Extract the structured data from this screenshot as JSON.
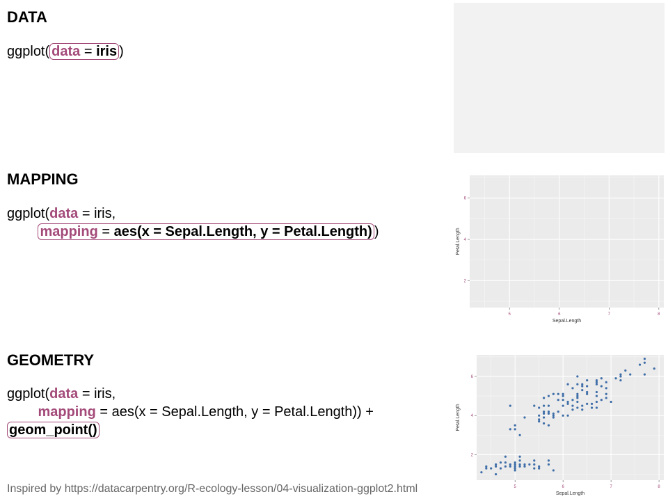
{
  "sections": {
    "data": {
      "heading": "DATA",
      "code": {
        "fn": "ggplot(",
        "data_kw": "data",
        "eq1": " = ",
        "iris": "iris",
        "close": ")"
      }
    },
    "mapping": {
      "heading": "MAPPING",
      "code": {
        "line1_fn": "ggplot(",
        "data_kw": "data",
        "line1_rest": " = iris,",
        "indent": "        ",
        "mapping_kw": "mapping",
        "eq": " = ",
        "aes": "aes(x = Sepal.Length, y = Petal.Length)",
        "close": ")"
      }
    },
    "geometry": {
      "heading": "GEOMETRY",
      "code": {
        "line1_fn": "ggplot(",
        "data_kw": "data",
        "line1_rest": " = iris,",
        "indent": "        ",
        "mapping_kw": "mapping",
        "line2_rest": " = aes(x = Sepal.Length, y = Petal.Length)) +",
        "geom": "geom_point()"
      }
    }
  },
  "footer": "Inspired by https://datacarpentry.org/R-ecology-lesson/04-visualization-ggplot2.html",
  "colors": {
    "keyword": "#a34a79",
    "panel": "#ebebeb",
    "point": "#3f6ea8"
  },
  "chart_data": [
    {
      "type": "scatter",
      "panel": "blank",
      "note": "empty gray canvas"
    },
    {
      "type": "scatter",
      "panel": "axes-only",
      "xlabel": "Sepal.Length",
      "ylabel": "Petal.Length",
      "xticks": [
        5,
        6,
        7,
        8
      ],
      "yticks": [
        2,
        4,
        6
      ],
      "xlim": [
        4.2,
        8.1
      ],
      "ylim": [
        0.7,
        7.1
      ],
      "grid": true,
      "points": []
    },
    {
      "type": "scatter",
      "panel": "points",
      "xlabel": "Sepal.Length",
      "ylabel": "Petal.Length",
      "xticks": [
        5,
        6,
        7,
        8
      ],
      "yticks": [
        2,
        4,
        6
      ],
      "xlim": [
        4.2,
        8.1
      ],
      "ylim": [
        0.7,
        7.1
      ],
      "grid": true,
      "points": [
        [
          4.3,
          1.1
        ],
        [
          4.4,
          1.3
        ],
        [
          4.4,
          1.4
        ],
        [
          4.5,
          1.3
        ],
        [
          4.6,
          1.0
        ],
        [
          4.6,
          1.4
        ],
        [
          4.6,
          1.5
        ],
        [
          4.7,
          1.3
        ],
        [
          4.7,
          1.6
        ],
        [
          4.8,
          1.4
        ],
        [
          4.8,
          1.6
        ],
        [
          4.8,
          1.9
        ],
        [
          4.9,
          1.4
        ],
        [
          4.9,
          1.5
        ],
        [
          4.9,
          3.3
        ],
        [
          4.9,
          4.5
        ],
        [
          5.0,
          1.2
        ],
        [
          5.0,
          1.3
        ],
        [
          5.0,
          1.4
        ],
        [
          5.0,
          1.5
        ],
        [
          5.0,
          1.6
        ],
        [
          5.0,
          3.3
        ],
        [
          5.0,
          3.5
        ],
        [
          5.1,
          1.4
        ],
        [
          5.1,
          1.5
        ],
        [
          5.1,
          1.7
        ],
        [
          5.1,
          1.9
        ],
        [
          5.1,
          3.0
        ],
        [
          5.2,
          1.4
        ],
        [
          5.2,
          1.5
        ],
        [
          5.2,
          3.9
        ],
        [
          5.3,
          1.5
        ],
        [
          5.4,
          1.3
        ],
        [
          5.4,
          1.5
        ],
        [
          5.4,
          1.7
        ],
        [
          5.4,
          4.5
        ],
        [
          5.5,
          1.3
        ],
        [
          5.5,
          1.4
        ],
        [
          5.5,
          3.7
        ],
        [
          5.5,
          3.8
        ],
        [
          5.5,
          4.0
        ],
        [
          5.5,
          4.4
        ],
        [
          5.6,
          3.6
        ],
        [
          5.6,
          3.9
        ],
        [
          5.6,
          4.1
        ],
        [
          5.6,
          4.2
        ],
        [
          5.6,
          4.5
        ],
        [
          5.6,
          4.9
        ],
        [
          5.7,
          1.5
        ],
        [
          5.7,
          1.7
        ],
        [
          5.7,
          3.5
        ],
        [
          5.7,
          4.1
        ],
        [
          5.7,
          4.2
        ],
        [
          5.7,
          4.5
        ],
        [
          5.7,
          5.0
        ],
        [
          5.8,
          1.2
        ],
        [
          5.8,
          3.9
        ],
        [
          5.8,
          4.0
        ],
        [
          5.8,
          4.1
        ],
        [
          5.8,
          5.1
        ],
        [
          5.9,
          4.2
        ],
        [
          5.9,
          4.8
        ],
        [
          5.9,
          5.1
        ],
        [
          6.0,
          4.0
        ],
        [
          6.0,
          4.5
        ],
        [
          6.0,
          4.8
        ],
        [
          6.0,
          5.0
        ],
        [
          6.0,
          5.1
        ],
        [
          6.1,
          4.0
        ],
        [
          6.1,
          4.6
        ],
        [
          6.1,
          4.7
        ],
        [
          6.1,
          5.6
        ],
        [
          6.2,
          4.3
        ],
        [
          6.2,
          4.5
        ],
        [
          6.2,
          4.8
        ],
        [
          6.2,
          5.4
        ],
        [
          6.3,
          4.4
        ],
        [
          6.3,
          4.7
        ],
        [
          6.3,
          4.9
        ],
        [
          6.3,
          5.0
        ],
        [
          6.3,
          5.1
        ],
        [
          6.3,
          5.6
        ],
        [
          6.3,
          6.0
        ],
        [
          6.4,
          4.3
        ],
        [
          6.4,
          4.5
        ],
        [
          6.4,
          5.3
        ],
        [
          6.4,
          5.5
        ],
        [
          6.4,
          5.6
        ],
        [
          6.5,
          4.6
        ],
        [
          6.5,
          5.1
        ],
        [
          6.5,
          5.2
        ],
        [
          6.5,
          5.5
        ],
        [
          6.5,
          5.8
        ],
        [
          6.6,
          4.4
        ],
        [
          6.6,
          4.6
        ],
        [
          6.7,
          4.4
        ],
        [
          6.7,
          4.7
        ],
        [
          6.7,
          5.0
        ],
        [
          6.7,
          5.2
        ],
        [
          6.7,
          5.6
        ],
        [
          6.7,
          5.7
        ],
        [
          6.7,
          5.8
        ],
        [
          6.8,
          4.8
        ],
        [
          6.8,
          5.5
        ],
        [
          6.8,
          5.9
        ],
        [
          6.9,
          4.9
        ],
        [
          6.9,
          5.1
        ],
        [
          6.9,
          5.4
        ],
        [
          6.9,
          5.7
        ],
        [
          7.0,
          4.7
        ],
        [
          7.1,
          5.9
        ],
        [
          7.2,
          5.8
        ],
        [
          7.2,
          6.0
        ],
        [
          7.2,
          6.1
        ],
        [
          7.3,
          6.3
        ],
        [
          7.4,
          6.1
        ],
        [
          7.6,
          6.6
        ],
        [
          7.7,
          6.1
        ],
        [
          7.7,
          6.7
        ],
        [
          7.7,
          6.9
        ],
        [
          7.9,
          6.4
        ]
      ]
    }
  ]
}
